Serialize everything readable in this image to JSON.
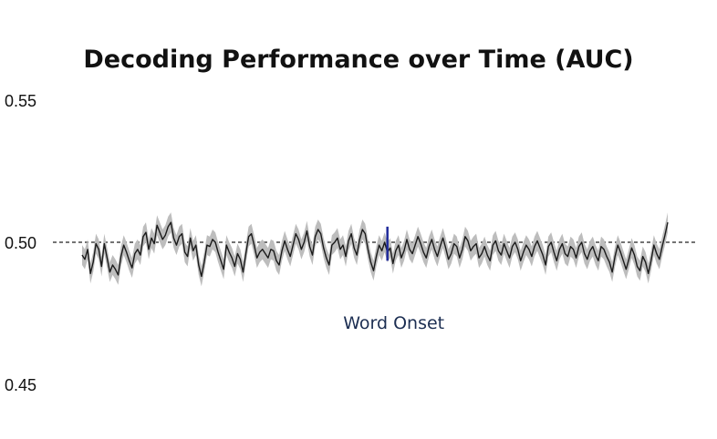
{
  "chart_data": {
    "type": "line",
    "title": "Decoding Performance over Time (AUC)",
    "xlabel": "",
    "ylabel": "",
    "ylim": [
      0.45,
      0.55
    ],
    "yticks": [
      "0.55",
      "0.50",
      "0.45"
    ],
    "grid": false,
    "chance_level": 0.5,
    "annotation": {
      "label": "Word Onset",
      "x_index": 110
    },
    "series": [
      {
        "band_halfwidth": 0.0035,
        "values": [
          0.4955,
          0.494,
          0.4975,
          0.489,
          0.493,
          0.4995,
          0.4975,
          0.4915,
          0.4995,
          0.4945,
          0.4895,
          0.492,
          0.4905,
          0.4885,
          0.495,
          0.499,
          0.4965,
          0.4935,
          0.491,
          0.496,
          0.4975,
          0.4955,
          0.502,
          0.5035,
          0.4975,
          0.5015,
          0.4995,
          0.506,
          0.5035,
          0.501,
          0.5025,
          0.5055,
          0.507,
          0.5015,
          0.499,
          0.502,
          0.503,
          0.4965,
          0.495,
          0.5015,
          0.497,
          0.499,
          0.492,
          0.488,
          0.493,
          0.499,
          0.4985,
          0.501,
          0.5,
          0.4965,
          0.4935,
          0.4905,
          0.499,
          0.4965,
          0.4945,
          0.4915,
          0.496,
          0.494,
          0.4895,
          0.496,
          0.502,
          0.503,
          0.499,
          0.4945,
          0.4965,
          0.4975,
          0.496,
          0.4945,
          0.4975,
          0.497,
          0.4935,
          0.492,
          0.497,
          0.5005,
          0.4975,
          0.495,
          0.499,
          0.503,
          0.501,
          0.4975,
          0.5,
          0.504,
          0.4985,
          0.4955,
          0.502,
          0.5045,
          0.503,
          0.498,
          0.4945,
          0.492,
          0.499,
          0.5,
          0.5015,
          0.4975,
          0.499,
          0.495,
          0.5005,
          0.503,
          0.498,
          0.4955,
          0.501,
          0.5045,
          0.503,
          0.4975,
          0.493,
          0.49,
          0.495,
          0.499,
          0.497,
          0.5,
          0.4965,
          0.498,
          0.4925,
          0.497,
          0.499,
          0.4945,
          0.497,
          0.501,
          0.4975,
          0.496,
          0.499,
          0.502,
          0.4995,
          0.4965,
          0.4945,
          0.4985,
          0.501,
          0.4975,
          0.495,
          0.4985,
          0.5015,
          0.498,
          0.494,
          0.496,
          0.4995,
          0.4985,
          0.4945,
          0.4975,
          0.502,
          0.5005,
          0.497,
          0.4985,
          0.4995,
          0.4945,
          0.496,
          0.4985,
          0.4955,
          0.4935,
          0.499,
          0.5005,
          0.497,
          0.4955,
          0.4995,
          0.497,
          0.4945,
          0.4985,
          0.5,
          0.4975,
          0.4935,
          0.4965,
          0.499,
          0.4975,
          0.495,
          0.4985,
          0.5005,
          0.498,
          0.4955,
          0.492,
          0.4985,
          0.5,
          0.4965,
          0.4935,
          0.4975,
          0.4995,
          0.496,
          0.495,
          0.4985,
          0.4975,
          0.4945,
          0.4985,
          0.5,
          0.496,
          0.494,
          0.497,
          0.4985,
          0.4955,
          0.4935,
          0.4985,
          0.4975,
          0.495,
          0.493,
          0.4895,
          0.495,
          0.499,
          0.4965,
          0.4935,
          0.4905,
          0.494,
          0.498,
          0.4955,
          0.4915,
          0.49,
          0.495,
          0.493,
          0.489,
          0.4935,
          0.499,
          0.496,
          0.494,
          0.4985,
          0.5025,
          0.507
        ]
      }
    ]
  }
}
